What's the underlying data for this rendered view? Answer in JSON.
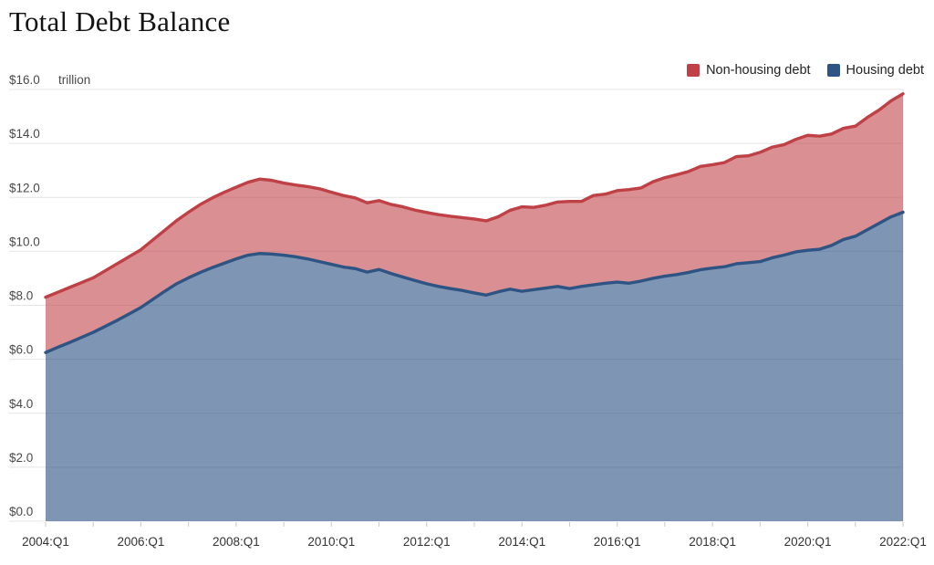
{
  "header": {
    "title": "Total Debt Balance"
  },
  "legend": [
    {
      "label": "Non-housing debt",
      "color": "#bf4045"
    },
    {
      "label": "Housing debt",
      "color": "#2e5484"
    }
  ],
  "chart_data": {
    "type": "area",
    "stacked": true,
    "title": "Total Debt Balance",
    "unit_label": "trillion",
    "y_tick_prefix": "$",
    "y_ticks": [
      0,
      2,
      4,
      6,
      8,
      10,
      12,
      14,
      16
    ],
    "ylim": [
      0,
      16
    ],
    "grid": "horizontal",
    "legend_position": "top-right",
    "x_start": "2004:Q1",
    "x_end": "2022:Q1",
    "x_frequency": "quarterly",
    "x_tick_labels": [
      "2004:Q1",
      "2006:Q1",
      "2008:Q1",
      "2010:Q1",
      "2012:Q1",
      "2014:Q1",
      "2016:Q1",
      "2018:Q1",
      "2020:Q1",
      "2022:Q1"
    ],
    "colors": {
      "gridline": "#e4e4e4",
      "tick": "#c9c9c9",
      "axis_text": "#4a4a4a",
      "x_axis_text": "#333333"
    },
    "series": [
      {
        "name": "Housing debt",
        "color": "#2e5484",
        "fill_opacity": 0.62,
        "stack_order": "bottom",
        "values": [
          6.25,
          6.44,
          6.62,
          6.81,
          7.0,
          7.22,
          7.44,
          7.68,
          7.92,
          8.22,
          8.52,
          8.8,
          9.02,
          9.22,
          9.4,
          9.56,
          9.72,
          9.86,
          9.92,
          9.9,
          9.86,
          9.8,
          9.72,
          9.62,
          9.52,
          9.42,
          9.36,
          9.23,
          9.33,
          9.18,
          9.05,
          8.92,
          8.8,
          8.7,
          8.62,
          8.55,
          8.46,
          8.38,
          8.5,
          8.6,
          8.52,
          8.58,
          8.64,
          8.7,
          8.62,
          8.7,
          8.76,
          8.82,
          8.86,
          8.82,
          8.9,
          9.0,
          9.08,
          9.14,
          9.22,
          9.32,
          9.38,
          9.43,
          9.54,
          9.58,
          9.62,
          9.76,
          9.86,
          9.98,
          10.04,
          10.08,
          10.22,
          10.44,
          10.56,
          10.8,
          11.04,
          11.28,
          11.45
        ]
      },
      {
        "name": "Non-housing debt",
        "color": "#bf4045",
        "fill_opacity": 0.58,
        "stack_order": "top",
        "values": [
          2.05,
          2.04,
          2.04,
          2.03,
          2.02,
          2.06,
          2.1,
          2.12,
          2.14,
          2.2,
          2.26,
          2.34,
          2.43,
          2.52,
          2.58,
          2.63,
          2.66,
          2.7,
          2.76,
          2.73,
          2.67,
          2.66,
          2.68,
          2.7,
          2.67,
          2.65,
          2.62,
          2.57,
          2.55,
          2.56,
          2.6,
          2.61,
          2.64,
          2.66,
          2.68,
          2.7,
          2.74,
          2.75,
          2.78,
          2.92,
          3.13,
          3.05,
          3.07,
          3.13,
          3.23,
          3.15,
          3.31,
          3.3,
          3.39,
          3.47,
          3.45,
          3.58,
          3.65,
          3.7,
          3.74,
          3.83,
          3.83,
          3.86,
          3.97,
          3.96,
          4.05,
          4.1,
          4.09,
          4.17,
          4.26,
          4.19,
          4.13,
          4.12,
          4.08,
          4.16,
          4.2,
          4.3,
          4.39
        ]
      }
    ]
  }
}
